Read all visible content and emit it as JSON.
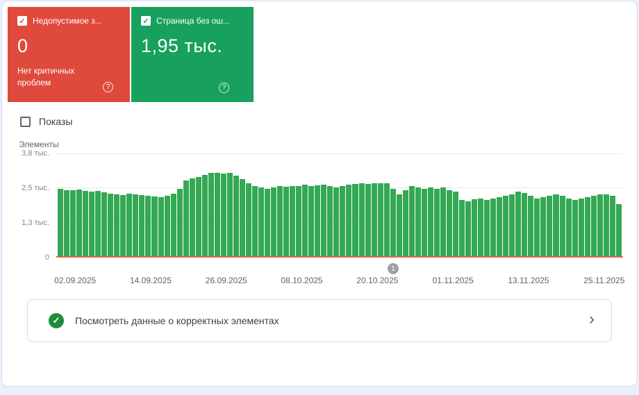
{
  "cards": {
    "error": {
      "label": "Недопустимое з...",
      "value": "0",
      "subtext": "Нет критичных проблем",
      "checked": true,
      "color": "#df4a3c"
    },
    "valid": {
      "label": "Страница без ош...",
      "value": "1,95 тыс.",
      "checked": true,
      "color": "#17a05e"
    }
  },
  "filters": {
    "impressions_label": "Показы",
    "impressions_checked": false
  },
  "chart_data": {
    "type": "bar",
    "ylabel": "Элементы",
    "ylim": [
      0,
      3800
    ],
    "ytick_labels": [
      "0",
      "1,3 тыс.",
      "2,5 тыс.",
      "3,8 тыс."
    ],
    "x_tick_labels": [
      "02.09.2025",
      "14.09.2025",
      "26.09.2025",
      "08.10.2025",
      "20.10.2025",
      "01.11.2025",
      "13.11.2025",
      "25.11.2025"
    ],
    "x_tick_day_index": [
      0,
      12,
      24,
      36,
      48,
      60,
      72,
      84
    ],
    "bar_color": "#34a853",
    "grid": true,
    "legend_position": "none",
    "series": [
      {
        "name": "Страница без ошибок",
        "color": "#34a853",
        "values": [
          2500,
          2470,
          2450,
          2480,
          2440,
          2400,
          2430,
          2380,
          2340,
          2300,
          2290,
          2320,
          2300,
          2280,
          2250,
          2230,
          2210,
          2260,
          2320,
          2500,
          2820,
          2900,
          2950,
          3020,
          3080,
          3100,
          3060,
          3100,
          2980,
          2870,
          2700,
          2620,
          2560,
          2520,
          2550,
          2600,
          2580,
          2620,
          2600,
          2650,
          2620,
          2640,
          2660,
          2600,
          2560,
          2610,
          2650,
          2680,
          2700,
          2690,
          2710,
          2720,
          2700,
          2500,
          2310,
          2460,
          2600,
          2560,
          2510,
          2550,
          2520,
          2560,
          2450,
          2400,
          2100,
          2050,
          2140,
          2150,
          2100,
          2150,
          2200,
          2260,
          2310,
          2400,
          2350,
          2260,
          2150,
          2200,
          2260,
          2300,
          2260,
          2160,
          2100,
          2150,
          2210,
          2260,
          2300,
          2300,
          2260,
          1950
        ]
      },
      {
        "name": "Недопустимое значение",
        "color": "#e45f4f",
        "constant_value": 0
      }
    ]
  },
  "marker": {
    "label": "1",
    "day_index": 53
  },
  "footer": {
    "link_text": "Посмотреть данные о корректных элементах"
  },
  "icons": {
    "check": "✓",
    "help": "?",
    "chevron_right": "›"
  }
}
